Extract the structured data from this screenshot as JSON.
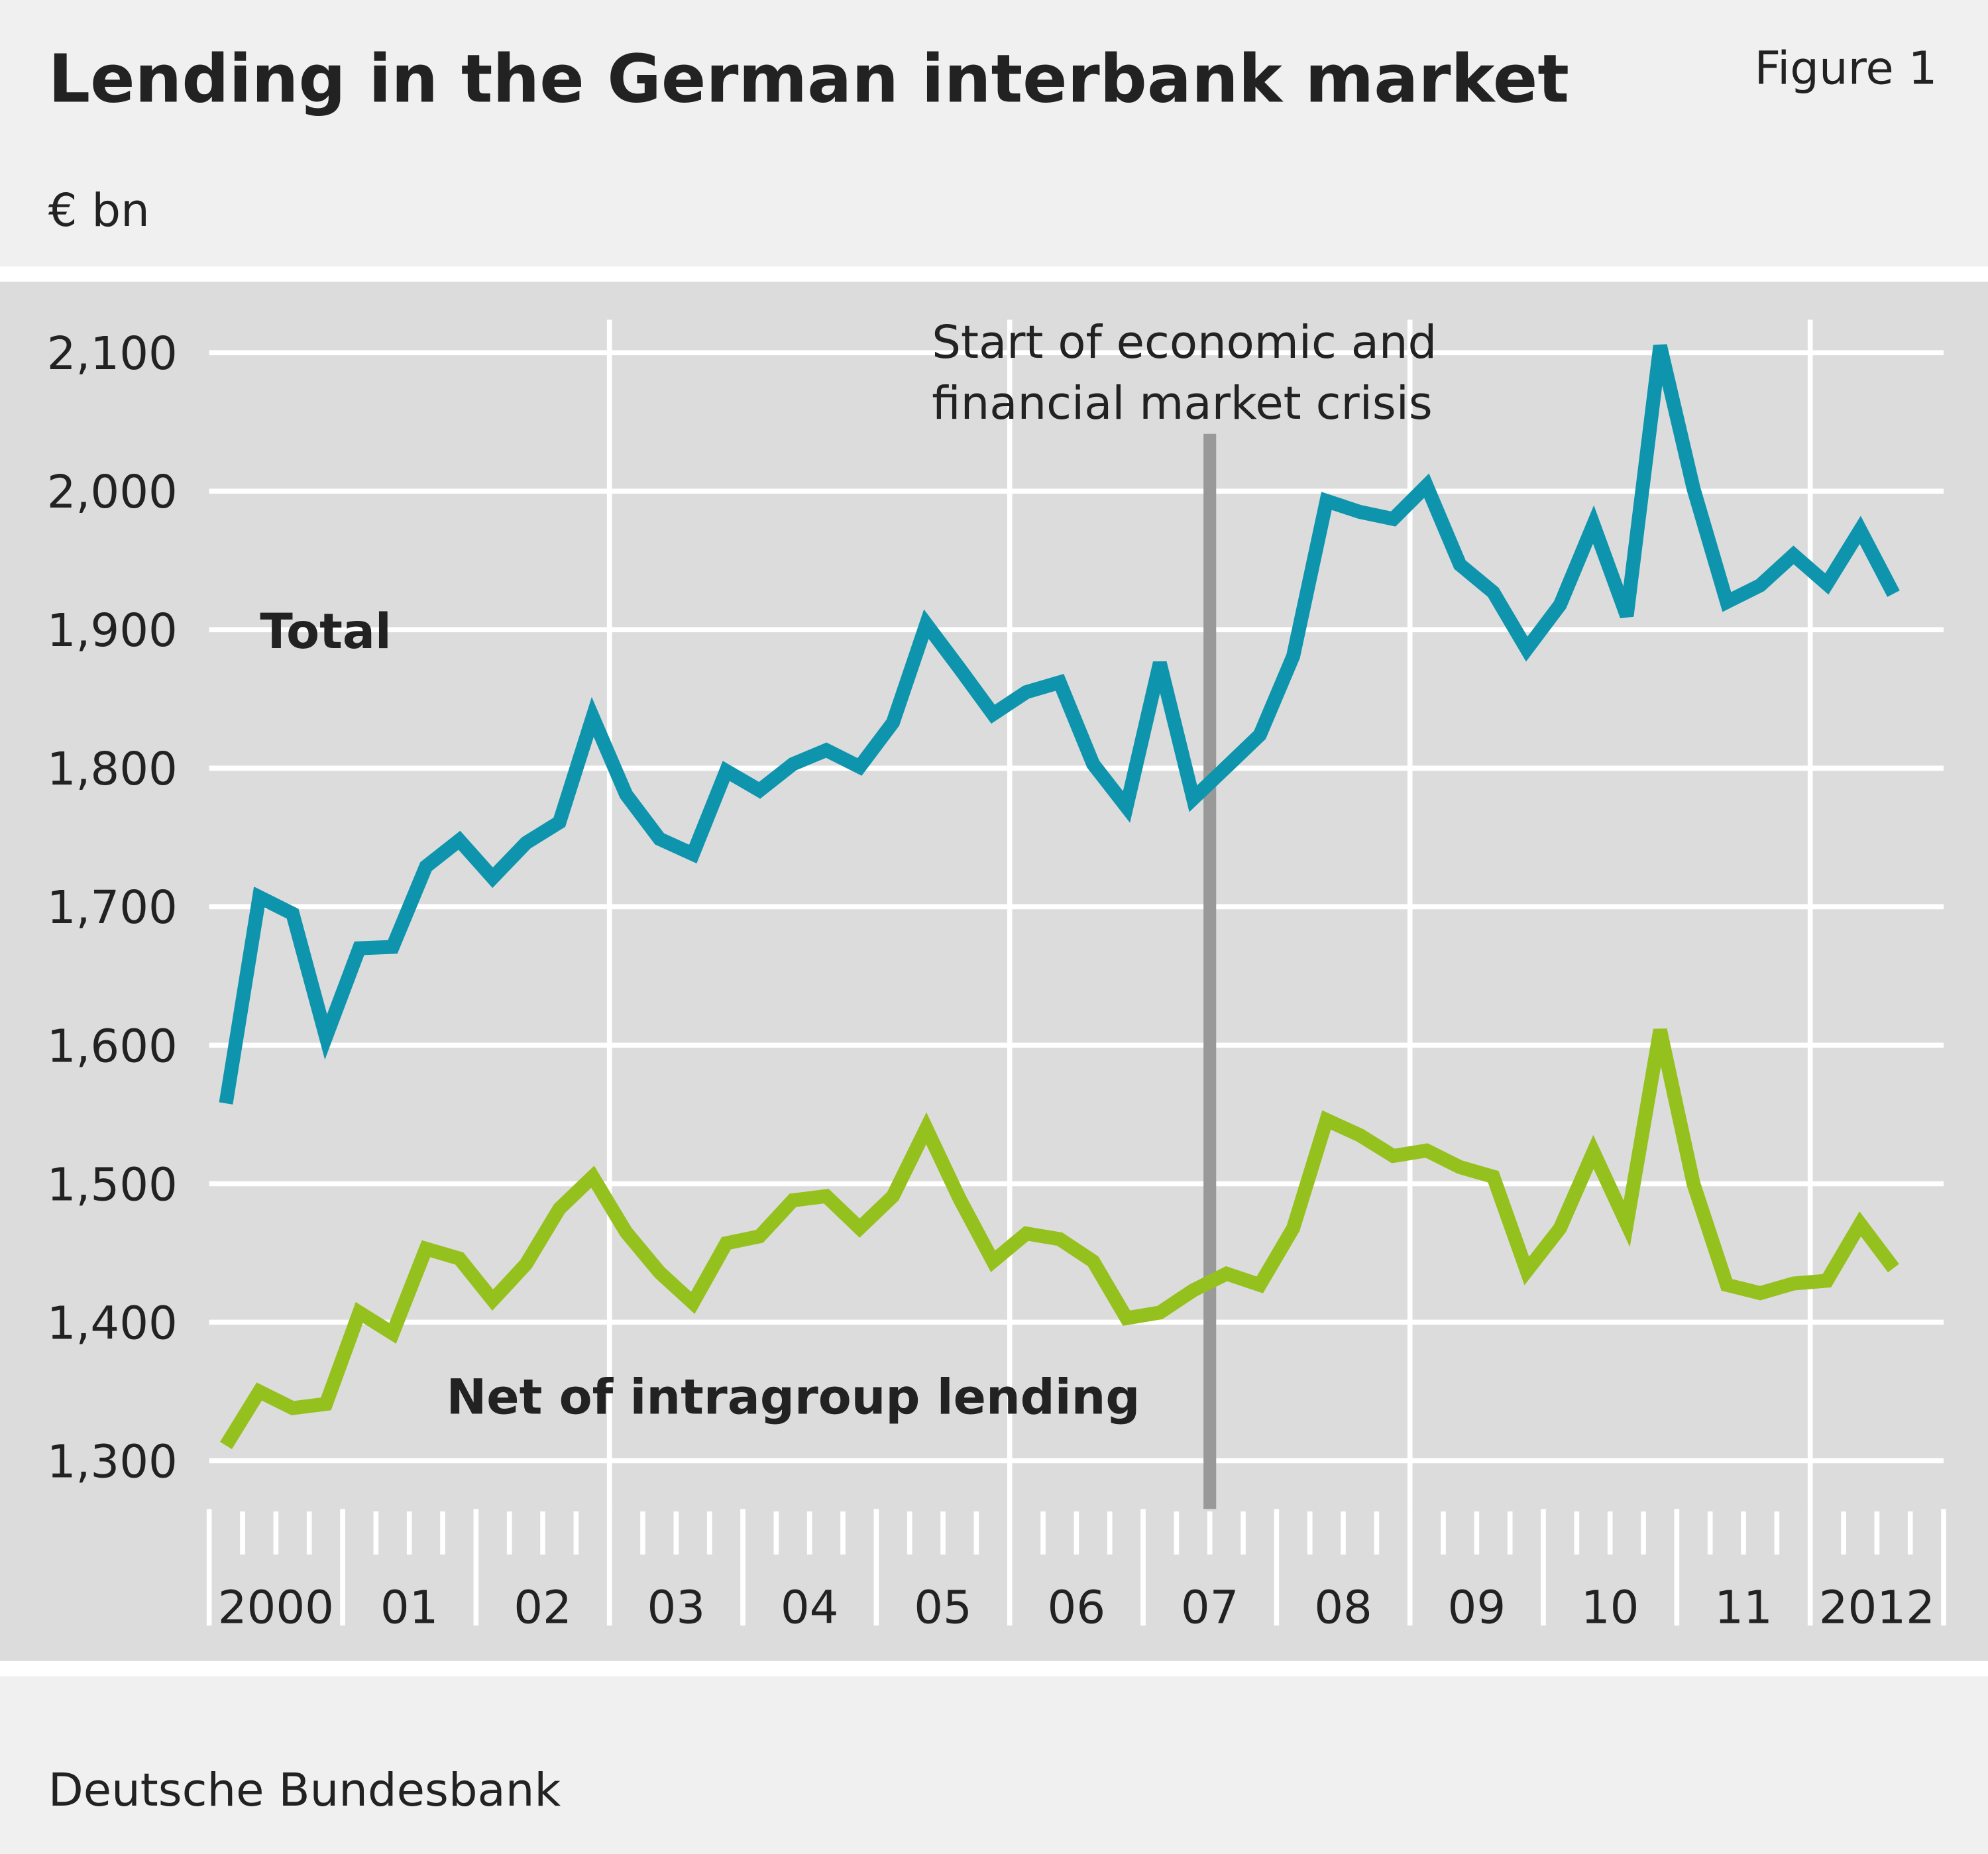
{
  "chart_data": {
    "type": "line",
    "title": "Lending in the German interbank market",
    "figure_label": "Figure 1",
    "y_label": "€ bn",
    "source": "Deutsche Bundesbank",
    "annotation": [
      "Start of economic and",
      "financial market crisis"
    ],
    "year_labels": [
      "2000",
      "01",
      "02",
      "03",
      "04",
      "05",
      "06",
      "07",
      "08",
      "09",
      "10",
      "11",
      "2012"
    ],
    "ylim": [
      1300,
      2100
    ],
    "yticks": [
      {
        "value": 1300,
        "label": "1,300"
      },
      {
        "value": 1400,
        "label": "1,400"
      },
      {
        "value": 1500,
        "label": "1,500"
      },
      {
        "value": 1600,
        "label": "1,600"
      },
      {
        "value": 1700,
        "label": "1,700"
      },
      {
        "value": 1800,
        "label": "1,800"
      },
      {
        "value": 1900,
        "label": "1,900"
      },
      {
        "value": 2000,
        "label": "2,000"
      },
      {
        "value": 2100,
        "label": "2,100"
      }
    ],
    "grid": true,
    "series": [
      {
        "name": "Total",
        "color": "#0e95ad",
        "values": [
          1558,
          1707,
          1695,
          1606,
          1670,
          1671,
          1729,
          1748,
          1721,
          1746,
          1761,
          1837,
          1781,
          1749,
          1738,
          1798,
          1784,
          1803,
          1813,
          1801,
          1833,
          1904,
          1872,
          1839,
          1855,
          1862,
          1803,
          1772,
          1876,
          1778,
          1801,
          1824,
          1881,
          1993,
          1985,
          1980,
          2004,
          1947,
          1927,
          1886,
          1918,
          1976,
          1910,
          2105,
          2002,
          1920,
          1932,
          1954,
          1933,
          1972,
          1926
        ]
      },
      {
        "name": "Net of intragroup lending",
        "color": "#95c11f",
        "values": [
          1311,
          1350,
          1338,
          1341,
          1407,
          1392,
          1453,
          1446,
          1416,
          1442,
          1482,
          1505,
          1465,
          1436,
          1414,
          1457,
          1462,
          1488,
          1491,
          1468,
          1491,
          1540,
          1489,
          1444,
          1464,
          1460,
          1444,
          1403,
          1407,
          1423,
          1435,
          1427,
          1468,
          1546,
          1535,
          1520,
          1524,
          1512,
          1505,
          1437,
          1468,
          1523,
          1471,
          1611,
          1500,
          1427,
          1421,
          1428,
          1430,
          1471,
          1439
        ]
      }
    ]
  }
}
